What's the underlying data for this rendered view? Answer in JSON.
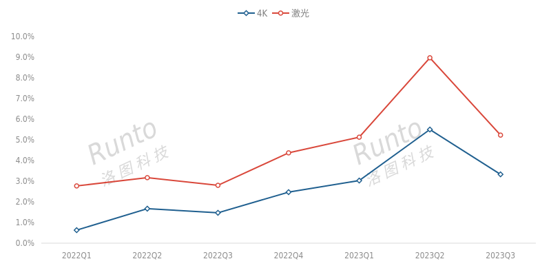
{
  "watermark": {
    "brand": "Runto",
    "cn": "洛图科技"
  },
  "chart_data": {
    "type": "line",
    "title": "",
    "xlabel": "",
    "ylabel": "",
    "categories": [
      "2022Q1",
      "2022Q2",
      "2022Q3",
      "2022Q4",
      "2023Q1",
      "2023Q2",
      "2023Q3"
    ],
    "ylim": [
      0,
      10
    ],
    "yticks": [
      "0.0%",
      "1.0%",
      "2.0%",
      "3.0%",
      "4.0%",
      "5.0%",
      "6.0%",
      "7.0%",
      "8.0%",
      "9.0%",
      "10.0%"
    ],
    "grid": false,
    "legend_position": "top",
    "series": [
      {
        "name": "4K",
        "color": "#1f5f8f",
        "marker": "diamond",
        "values": [
          0.63,
          1.67,
          1.47,
          2.47,
          3.03,
          5.5,
          3.33
        ]
      },
      {
        "name": "激光",
        "color": "#d9473a",
        "marker": "circle",
        "values": [
          2.77,
          3.17,
          2.8,
          4.37,
          5.13,
          8.97,
          5.23
        ]
      }
    ]
  }
}
